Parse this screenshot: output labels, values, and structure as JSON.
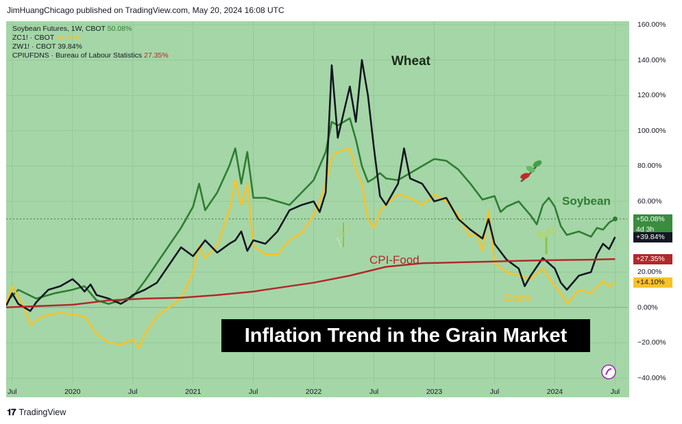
{
  "header": {
    "publisher_line": "JimHuangChicago published on TradingView.com, May 20, 2024 16:08 UTC"
  },
  "footer": {
    "brand": "TradingView",
    "logo_glyph": "𝟏𝟕"
  },
  "legend": [
    {
      "label": "Soybean Futures, 1W, CBOT",
      "value": "50.08%",
      "color": "#2e7d32"
    },
    {
      "label": "ZC1! · CBOT",
      "value": "14.10%",
      "color": "#f9c229"
    },
    {
      "label": "ZW1! · CBOT",
      "value": "39.84%",
      "color": "#131722"
    },
    {
      "label": "CPIUFDNS · Bureau of Labour Statistics",
      "value": "27.35%",
      "color": "#b0292b"
    }
  ],
  "price_tags": [
    {
      "lines": [
        "+50.08%",
        "4d 3h"
      ],
      "bg": "#3a8c3f",
      "fg": "#ffffff",
      "value": 50.08
    },
    {
      "lines": [
        "+39.84%"
      ],
      "bg": "#131722",
      "fg": "#ffffff",
      "value": 39.84
    },
    {
      "lines": [
        "+27.35%"
      ],
      "bg": "#b0292b",
      "fg": "#ffffff",
      "value": 27.35
    },
    {
      "lines": [
        "+14.10%"
      ],
      "bg": "#f9c229",
      "fg": "#131722",
      "value": 14.1
    }
  ],
  "annotations": {
    "wheat": "Wheat",
    "soybean": "Soybean",
    "cpi_food": "CPI-Food",
    "corn": "Corn",
    "banner": "Inflation Trend in the Grain Market"
  },
  "colors": {
    "background": "#a5d6a7",
    "grid": "#95c997",
    "soybean": "#2e7d32",
    "corn": "#f9c229",
    "wheat": "#131722",
    "cpi": "#b0292b"
  },
  "chart_data": {
    "type": "line",
    "yaxis": {
      "min": -40,
      "max": 160,
      "ticks": [
        "160.00%",
        "140.00%",
        "120.00%",
        "100.00%",
        "80.00%",
        "60.00%",
        "20.00%",
        "0.00%",
        "−20.00%",
        "−40.00%"
      ],
      "tick_values": [
        160,
        140,
        120,
        100,
        80,
        60,
        20,
        0,
        -20,
        -40
      ]
    },
    "xaxis": {
      "start": 2019.45,
      "end": 2024.6,
      "ticks": [
        {
          "label": "Jul",
          "t": 2019.5
        },
        {
          "label": "2020",
          "t": 2020.0
        },
        {
          "label": "Jul",
          "t": 2020.5
        },
        {
          "label": "2021",
          "t": 2021.0
        },
        {
          "label": "Jul",
          "t": 2021.5
        },
        {
          "label": "2022",
          "t": 2022.0
        },
        {
          "label": "Jul",
          "t": 2022.5
        },
        {
          "label": "2023",
          "t": 2023.0
        },
        {
          "label": "Jul",
          "t": 2023.5
        },
        {
          "label": "2024",
          "t": 2024.0
        },
        {
          "label": "Jul",
          "t": 2024.5
        }
      ]
    },
    "series": [
      {
        "name": "Soybean Futures, 1W, CBOT",
        "color": "#2e7d32",
        "points": [
          [
            2019.45,
            3
          ],
          [
            2019.55,
            10
          ],
          [
            2019.7,
            5
          ],
          [
            2019.85,
            8
          ],
          [
            2020.0,
            10
          ],
          [
            2020.1,
            12
          ],
          [
            2020.2,
            4
          ],
          [
            2020.3,
            2
          ],
          [
            2020.4,
            4
          ],
          [
            2020.5,
            6
          ],
          [
            2020.6,
            15
          ],
          [
            2020.7,
            25
          ],
          [
            2020.8,
            35
          ],
          [
            2020.9,
            45
          ],
          [
            2021.0,
            57
          ],
          [
            2021.05,
            70
          ],
          [
            2021.1,
            55
          ],
          [
            2021.2,
            65
          ],
          [
            2021.3,
            80
          ],
          [
            2021.35,
            90
          ],
          [
            2021.4,
            70
          ],
          [
            2021.45,
            88
          ],
          [
            2021.5,
            62
          ],
          [
            2021.6,
            62
          ],
          [
            2021.7,
            60
          ],
          [
            2021.8,
            58
          ],
          [
            2021.9,
            65
          ],
          [
            2022.0,
            72
          ],
          [
            2022.1,
            88
          ],
          [
            2022.15,
            105
          ],
          [
            2022.2,
            103
          ],
          [
            2022.3,
            107
          ],
          [
            2022.35,
            95
          ],
          [
            2022.4,
            80
          ],
          [
            2022.45,
            71
          ],
          [
            2022.5,
            73
          ],
          [
            2022.55,
            76
          ],
          [
            2022.6,
            73
          ],
          [
            2022.7,
            72
          ],
          [
            2022.8,
            76
          ],
          [
            2022.9,
            80
          ],
          [
            2023.0,
            84
          ],
          [
            2023.1,
            83
          ],
          [
            2023.2,
            78
          ],
          [
            2023.3,
            70
          ],
          [
            2023.4,
            61
          ],
          [
            2023.5,
            63
          ],
          [
            2023.55,
            54
          ],
          [
            2023.6,
            57
          ],
          [
            2023.7,
            60
          ],
          [
            2023.8,
            52
          ],
          [
            2023.85,
            47
          ],
          [
            2023.9,
            58
          ],
          [
            2023.95,
            62
          ],
          [
            2024.0,
            57
          ],
          [
            2024.05,
            46
          ],
          [
            2024.1,
            41
          ],
          [
            2024.2,
            43
          ],
          [
            2024.3,
            40
          ],
          [
            2024.35,
            45
          ],
          [
            2024.4,
            44
          ],
          [
            2024.45,
            48
          ],
          [
            2024.5,
            50.08
          ]
        ]
      },
      {
        "name": "ZC1! · CBOT",
        "color": "#f9c229",
        "points": [
          [
            2019.45,
            2
          ],
          [
            2019.5,
            12
          ],
          [
            2019.6,
            0
          ],
          [
            2019.65,
            -10
          ],
          [
            2019.75,
            -5
          ],
          [
            2019.9,
            -3
          ],
          [
            2020.0,
            -4
          ],
          [
            2020.1,
            -5
          ],
          [
            2020.2,
            -15
          ],
          [
            2020.3,
            -20
          ],
          [
            2020.4,
            -21
          ],
          [
            2020.5,
            -18
          ],
          [
            2020.55,
            -23
          ],
          [
            2020.6,
            -15
          ],
          [
            2020.7,
            -5
          ],
          [
            2020.8,
            0
          ],
          [
            2020.9,
            5
          ],
          [
            2021.0,
            20
          ],
          [
            2021.05,
            35
          ],
          [
            2021.1,
            28
          ],
          [
            2021.2,
            35
          ],
          [
            2021.25,
            45
          ],
          [
            2021.3,
            55
          ],
          [
            2021.35,
            72
          ],
          [
            2021.4,
            58
          ],
          [
            2021.45,
            70
          ],
          [
            2021.5,
            35
          ],
          [
            2021.6,
            30
          ],
          [
            2021.7,
            30
          ],
          [
            2021.8,
            38
          ],
          [
            2021.9,
            42
          ],
          [
            2022.0,
            52
          ],
          [
            2022.05,
            60
          ],
          [
            2022.1,
            70
          ],
          [
            2022.15,
            85
          ],
          [
            2022.2,
            88
          ],
          [
            2022.3,
            90
          ],
          [
            2022.35,
            78
          ],
          [
            2022.4,
            70
          ],
          [
            2022.45,
            50
          ],
          [
            2022.5,
            45
          ],
          [
            2022.55,
            55
          ],
          [
            2022.6,
            58
          ],
          [
            2022.7,
            64
          ],
          [
            2022.8,
            62
          ],
          [
            2022.9,
            58
          ],
          [
            2023.0,
            64
          ],
          [
            2023.1,
            60
          ],
          [
            2023.2,
            52
          ],
          [
            2023.3,
            40
          ],
          [
            2023.35,
            42
          ],
          [
            2023.4,
            32
          ],
          [
            2023.45,
            55
          ],
          [
            2023.5,
            25
          ],
          [
            2023.6,
            20
          ],
          [
            2023.7,
            18
          ],
          [
            2023.8,
            16
          ],
          [
            2023.9,
            22
          ],
          [
            2024.0,
            12
          ],
          [
            2024.05,
            8
          ],
          [
            2024.1,
            2
          ],
          [
            2024.2,
            10
          ],
          [
            2024.3,
            8
          ],
          [
            2024.4,
            15
          ],
          [
            2024.45,
            12
          ],
          [
            2024.5,
            14.1
          ]
        ]
      },
      {
        "name": "ZW1! · CBOT",
        "color": "#131722",
        "points": [
          [
            2019.45,
            1
          ],
          [
            2019.5,
            8
          ],
          [
            2019.55,
            2
          ],
          [
            2019.65,
            -2
          ],
          [
            2019.7,
            3
          ],
          [
            2019.8,
            10
          ],
          [
            2019.9,
            12
          ],
          [
            2020.0,
            16
          ],
          [
            2020.05,
            13
          ],
          [
            2020.1,
            9
          ],
          [
            2020.15,
            13
          ],
          [
            2020.2,
            7
          ],
          [
            2020.3,
            5
          ],
          [
            2020.4,
            2
          ],
          [
            2020.45,
            4
          ],
          [
            2020.5,
            7
          ],
          [
            2020.6,
            10
          ],
          [
            2020.7,
            14
          ],
          [
            2020.8,
            24
          ],
          [
            2020.9,
            34
          ],
          [
            2021.0,
            29
          ],
          [
            2021.1,
            38
          ],
          [
            2021.2,
            31
          ],
          [
            2021.3,
            36
          ],
          [
            2021.35,
            38
          ],
          [
            2021.4,
            43
          ],
          [
            2021.45,
            32
          ],
          [
            2021.5,
            38
          ],
          [
            2021.6,
            36
          ],
          [
            2021.7,
            43
          ],
          [
            2021.8,
            55
          ],
          [
            2021.9,
            58
          ],
          [
            2022.0,
            60
          ],
          [
            2022.05,
            54
          ],
          [
            2022.1,
            65
          ],
          [
            2022.15,
            137
          ],
          [
            2022.2,
            96
          ],
          [
            2022.3,
            125
          ],
          [
            2022.35,
            105
          ],
          [
            2022.4,
            140
          ],
          [
            2022.45,
            120
          ],
          [
            2022.5,
            90
          ],
          [
            2022.55,
            63
          ],
          [
            2022.6,
            58
          ],
          [
            2022.7,
            70
          ],
          [
            2022.75,
            90
          ],
          [
            2022.8,
            73
          ],
          [
            2022.9,
            70
          ],
          [
            2023.0,
            60
          ],
          [
            2023.1,
            62
          ],
          [
            2023.2,
            50
          ],
          [
            2023.3,
            44
          ],
          [
            2023.4,
            39
          ],
          [
            2023.45,
            50
          ],
          [
            2023.5,
            36
          ],
          [
            2023.6,
            27
          ],
          [
            2023.7,
            22
          ],
          [
            2023.75,
            12
          ],
          [
            2023.8,
            18
          ],
          [
            2023.9,
            28
          ],
          [
            2024.0,
            22
          ],
          [
            2024.05,
            14
          ],
          [
            2024.1,
            10
          ],
          [
            2024.2,
            18
          ],
          [
            2024.3,
            20
          ],
          [
            2024.35,
            30
          ],
          [
            2024.4,
            36
          ],
          [
            2024.45,
            33
          ],
          [
            2024.5,
            39.84
          ]
        ]
      },
      {
        "name": "CPIUFDNS · Bureau of Labour Statistics",
        "color": "#b0292b",
        "points": [
          [
            2019.45,
            0
          ],
          [
            2019.8,
            1
          ],
          [
            2020.0,
            1.5
          ],
          [
            2020.3,
            4
          ],
          [
            2020.6,
            5
          ],
          [
            2020.9,
            5.5
          ],
          [
            2021.2,
            7
          ],
          [
            2021.5,
            9
          ],
          [
            2021.8,
            12
          ],
          [
            2022.0,
            14
          ],
          [
            2022.3,
            18
          ],
          [
            2022.6,
            23
          ],
          [
            2022.9,
            25
          ],
          [
            2023.2,
            25.5
          ],
          [
            2023.5,
            26
          ],
          [
            2023.8,
            26.5
          ],
          [
            2024.0,
            26.8
          ],
          [
            2024.3,
            27
          ],
          [
            2024.5,
            27.35
          ]
        ]
      }
    ]
  }
}
